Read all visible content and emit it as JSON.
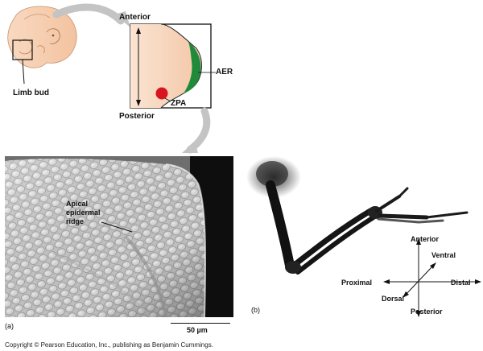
{
  "labels": {
    "limb_bud": "Limb bud",
    "anterior_top": "Anterior",
    "posterior_top": "Posterior",
    "aer": "AER",
    "zpa": "ZPA",
    "apical_line1": "Apical",
    "apical_line2": "epidermal",
    "apical_line3": "ridge",
    "panel_a": "(a)",
    "panel_b": "(b)",
    "scale_bar": "50 µm",
    "axis_anterior": "Anterior",
    "axis_posterior": "Posterior",
    "axis_ventral": "Ventral",
    "axis_dorsal": "Dorsal",
    "axis_proximal": "Proximal",
    "axis_distal": "Distal"
  },
  "copyright": "Copyright © Pearson Education, Inc., publishing as Benjamin Cummings.",
  "colors": {
    "embryo_skin": "#f6c9a6",
    "aer_green": "#1e8a3a",
    "zpa_red": "#d8141e",
    "arrow_gray": "#c4c4c4"
  }
}
